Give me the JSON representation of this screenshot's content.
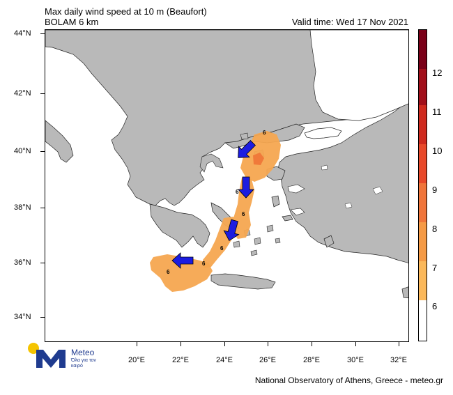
{
  "header": {
    "title_line1": "Max daily wind speed at 10 m (Beaufort)",
    "title_line2": "BOLAM 6 km",
    "valid_time": "Valid time: Wed 17 Nov 2021"
  },
  "axes": {
    "lat_labels": [
      "44°N",
      "42°N",
      "40°N",
      "38°N",
      "36°N",
      "34°N"
    ],
    "lon_labels": [
      "20°E",
      "22°E",
      "24°E",
      "26°E",
      "28°E",
      "30°E",
      "32°E"
    ]
  },
  "colorbar": {
    "labels": [
      "12",
      "11",
      "10",
      "9",
      "8",
      "7",
      "6"
    ],
    "colors": [
      "#7a0018",
      "#a10f1a",
      "#cf2a1e",
      "#e8492a",
      "#f0753a",
      "#f59a45",
      "#fbb85a",
      "#ffffff"
    ]
  },
  "map": {
    "land_color": "#b9b9b9",
    "sea_color": "#ffffff",
    "wind_area_color": "#f5a650",
    "wind_core_color": "#f07a3a",
    "arrow_color": "#1c1ce0",
    "point_labels": [
      "6",
      "6",
      "6",
      "6",
      "6",
      "6"
    ]
  },
  "logo": {
    "name": "Meteo",
    "tagline": "Όλα για τον καιρό"
  },
  "footer": {
    "credit": "National Observatory of Athens, Greece - meteo.gr"
  }
}
